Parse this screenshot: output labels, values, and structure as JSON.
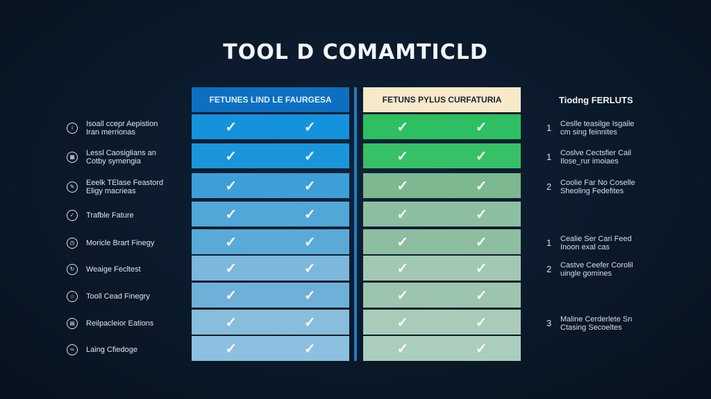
{
  "title": "TOOL D COMAMTICLD",
  "left_table": {
    "header": "FETUNES LIND LE FAURGESA",
    "color": "#0d6fc0",
    "rows": [
      [
        "✓",
        "✓"
      ],
      [
        "✓",
        "✓"
      ],
      [
        "✓",
        "✓"
      ],
      [
        "✓",
        "✓"
      ],
      [
        "✓",
        "✓"
      ],
      [
        "✓",
        "✓"
      ],
      [
        "✓",
        "✓"
      ],
      [
        "✓",
        "✓"
      ],
      [
        "✓",
        "✓"
      ]
    ],
    "row_colors": [
      "#1592dc",
      "#1a95dc",
      "#3e9fd8",
      "#50a7d8",
      "#5aaad8",
      "#7cb7dc",
      "#6fb0d8",
      "#86bedc",
      "#8dc0e0"
    ]
  },
  "right_table": {
    "header": "FETUNS PYLUS CURFATURIA",
    "color": "#f7e9c9",
    "rows": [
      [
        "✓",
        "✓"
      ],
      [
        "✓",
        "✓"
      ],
      [
        "✓",
        "✓"
      ],
      [
        "✓",
        "✓"
      ],
      [
        "✓",
        "✓"
      ],
      [
        "✓",
        "✓"
      ],
      [
        "✓",
        "✓"
      ],
      [
        "✓",
        "✓"
      ],
      [
        "✓",
        "✓"
      ]
    ],
    "row_colors": [
      "#2ebf62",
      "#36c166",
      "#7db890",
      "#8cbfa0",
      "#8dbea0",
      "#a2c8b4",
      "#9cc4ae",
      "#a8ccb8",
      "#abcdbb"
    ]
  },
  "features": [
    {
      "icon": "info-icon",
      "line1": "Isoall ccepr Aepistion",
      "line2": "Iran merrionas"
    },
    {
      "icon": "calendar-icon",
      "line1": "Lessl Caosiglians an",
      "line2": "Cotby symengia"
    },
    {
      "icon": "edit-icon",
      "line1": "Eeelk TElase Feastord",
      "line2": "Eligy macrieas"
    },
    {
      "icon": "check-circle-icon",
      "line1": "Trafble Fature",
      "line2": ""
    },
    {
      "icon": "clock-icon",
      "line1": "Moricle Brart Finegy",
      "line2": ""
    },
    {
      "icon": "refresh-icon",
      "line1": "Weaige Fecltest",
      "line2": ""
    },
    {
      "icon": "lock-icon",
      "line1": "Tooll Cead Finegry",
      "line2": ""
    },
    {
      "icon": "grid-icon",
      "line1": "Reilpacleior Eations",
      "line2": ""
    },
    {
      "icon": "link-icon",
      "line1": "Laing Cfiedoge",
      "line2": ""
    }
  ],
  "notes_title": "Tiodng FERLUTS",
  "notes": [
    {
      "num": "1",
      "line1": "Ceslle teasilge Isgaile",
      "line2": "cm sing feinnites",
      "row": 0
    },
    {
      "num": "1",
      "line1": "Coslve Cectsfier Cail",
      "line2": "Ilose_rur imoiaes",
      "row": 1
    },
    {
      "num": "2",
      "line1": "Coolie Far No Coselle",
      "line2": "Sheoling Fedefites",
      "row": 2
    },
    {
      "num": "1",
      "line1": "Cealie Ser Cari Feed",
      "line2": "Inoon exal cas",
      "row": 4
    },
    {
      "num": "2",
      "line1": "Castve Ceefer Corolil",
      "line2": "uingle gomines",
      "row": 5
    },
    {
      "num": "3",
      "line1": "Maline Cerderlete Sn",
      "line2": "Ctasing Secoeltes",
      "row": 7
    }
  ]
}
